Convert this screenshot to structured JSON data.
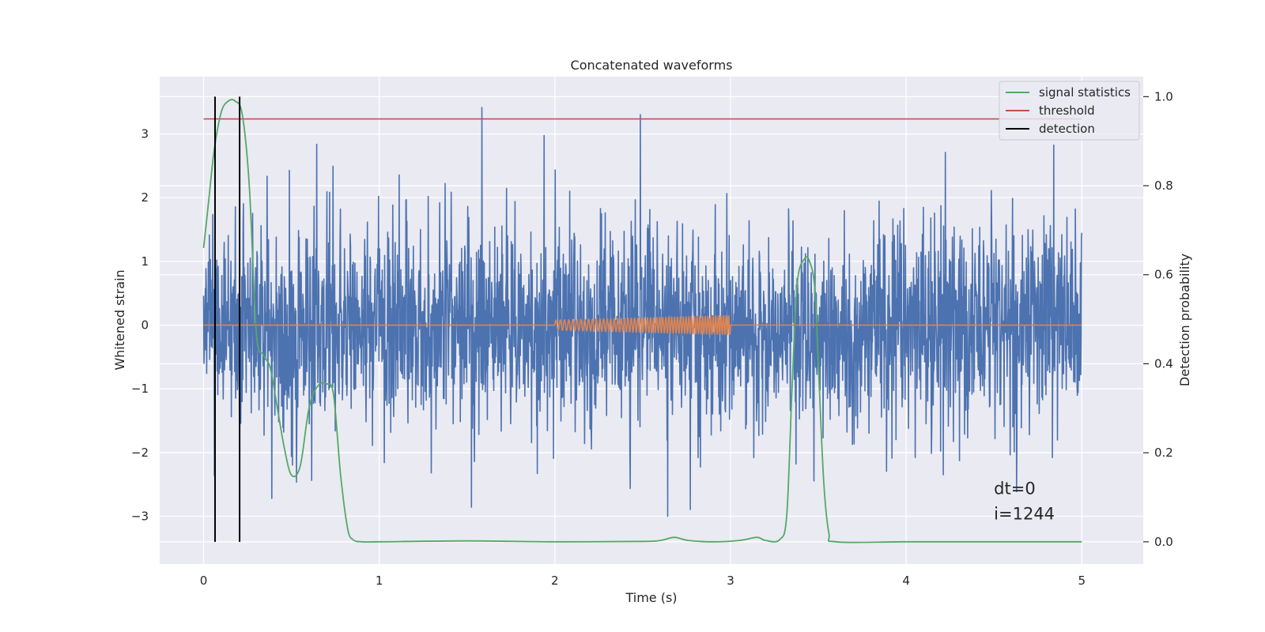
{
  "chart_data": {
    "type": "line",
    "title": "Concatenated waveforms",
    "xlabel": "Time (s)",
    "ylabel": "Whitened strain",
    "y2label": "Detection probability",
    "xlim": [
      -0.25,
      5.35
    ],
    "ylim": [
      -3.75,
      3.9
    ],
    "y2lim": [
      -0.05,
      1.045
    ],
    "xticks": [
      0,
      1,
      2,
      3,
      4,
      5
    ],
    "yticks": [
      -3,
      -2,
      -1,
      0,
      1,
      2,
      3
    ],
    "y2ticks": [
      0.0,
      0.2,
      0.4,
      0.6,
      0.8,
      1.0
    ],
    "xtick_labels": [
      "0",
      "1",
      "2",
      "3",
      "4",
      "5"
    ],
    "ytick_labels": [
      "−3",
      "−2",
      "−1",
      "0",
      "1",
      "2",
      "3"
    ],
    "y2tick_labels": [
      "0.0",
      "0.2",
      "0.4",
      "0.6",
      "0.8",
      "1.0"
    ],
    "grid": true,
    "legend_position": "top-right",
    "series": [
      {
        "kind": "noise",
        "color": "#4c72b0",
        "x_range": [
          0,
          5
        ],
        "core_amplitude": 0.75,
        "spike_range": [
          -3.3,
          3.55
        ]
      },
      {
        "kind": "chirp",
        "color": "#dd8452",
        "x_range": [
          0,
          5
        ],
        "chirp_range": [
          2.0,
          3.0
        ],
        "amplitude_range": [
          0.08,
          0.15
        ]
      },
      {
        "name": "signal statistics",
        "axis": "y2",
        "color": "#55a868",
        "x": [
          0,
          0.03,
          0.06,
          0.1,
          0.14,
          0.18,
          0.22,
          0.26,
          0.3,
          0.34,
          0.38,
          0.42,
          0.46,
          0.5,
          0.55,
          0.6,
          0.65,
          0.7,
          0.74,
          0.78,
          0.82,
          0.85,
          0.9,
          1.0,
          1.5,
          2.0,
          2.5,
          2.6,
          2.68,
          2.76,
          2.9,
          3.05,
          3.15,
          3.2,
          3.28,
          3.32,
          3.35,
          3.38,
          3.42,
          3.45,
          3.48,
          3.5,
          3.53,
          3.56,
          3.6,
          4.0,
          4.5,
          5.0
        ],
        "y": [
          0.66,
          0.77,
          0.88,
          0.965,
          0.99,
          0.99,
          0.96,
          0.8,
          0.47,
          0.42,
          0.39,
          0.3,
          0.21,
          0.15,
          0.17,
          0.3,
          0.35,
          0.355,
          0.33,
          0.15,
          0.03,
          0.005,
          0.0,
          0.0,
          0.002,
          0.0,
          0.001,
          0.003,
          0.01,
          0.003,
          0.0,
          0.003,
          0.01,
          0.003,
          0.005,
          0.06,
          0.34,
          0.58,
          0.635,
          0.63,
          0.57,
          0.4,
          0.14,
          0.02,
          0.0,
          0.0,
          0.0,
          0.0
        ]
      },
      {
        "name": "threshold",
        "axis": "y2",
        "color": "#c44e52",
        "x": [
          0,
          5
        ],
        "y": [
          0.95,
          0.95
        ]
      },
      {
        "name": "detection",
        "kind": "vlines",
        "color": "#000000",
        "x": [
          0.065,
          0.205
        ]
      }
    ],
    "annotations": [
      {
        "text": "dt=0",
        "x": 4.5,
        "y": -2.65
      },
      {
        "text": "i=1244",
        "x": 4.5,
        "y": -3.05
      }
    ]
  }
}
